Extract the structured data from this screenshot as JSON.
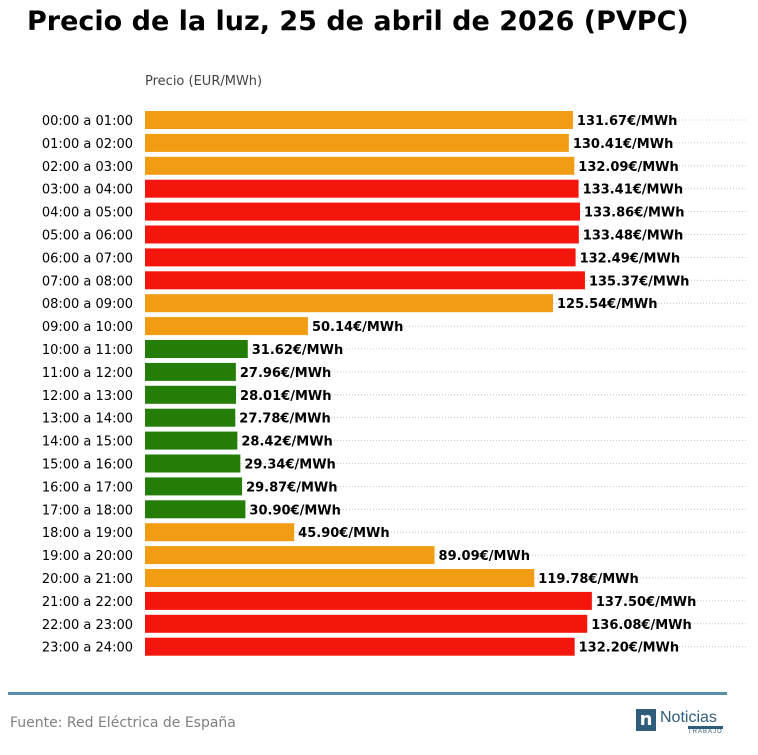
{
  "title": "Precio de la luz, 25 de abril de 2026 (PVPC)",
  "source": "Fuente: Red Eléctrica de España",
  "logo": {
    "mark": "n",
    "main": "Noticias",
    "sub": "TRABAJO"
  },
  "colors": {
    "high": "#f4150c",
    "mid": "#f29c13",
    "low": "#237d07",
    "rule": "#5b8fa8"
  },
  "chart_data": {
    "type": "bar",
    "orientation": "horizontal",
    "ylabel": "Precio (EUR/MWh)",
    "unit_suffix": "€/MWh",
    "xlim": [
      0,
      140
    ],
    "grid": "dotted horizontal",
    "categories": [
      "00:00 a 01:00",
      "01:00 a 02:00",
      "02:00 a 03:00",
      "03:00 a 04:00",
      "04:00 a 05:00",
      "05:00 a 06:00",
      "06:00 a 07:00",
      "07:00 a 08:00",
      "08:00 a 09:00",
      "09:00 a 10:00",
      "10:00 a 11:00",
      "11:00 a 12:00",
      "12:00 a 13:00",
      "13:00 a 14:00",
      "14:00 a 15:00",
      "15:00 a 16:00",
      "16:00 a 17:00",
      "17:00 a 18:00",
      "18:00 a 19:00",
      "19:00 a 20:00",
      "20:00 a 21:00",
      "21:00 a 22:00",
      "22:00 a 23:00",
      "23:00 a 24:00"
    ],
    "values": [
      131.67,
      130.41,
      132.09,
      133.41,
      133.86,
      133.48,
      132.49,
      135.37,
      125.54,
      50.14,
      31.62,
      27.96,
      28.01,
      27.78,
      28.42,
      29.34,
      29.87,
      30.9,
      45.9,
      89.09,
      119.78,
      137.5,
      136.08,
      132.2
    ],
    "labels": [
      "131.67€/MWh",
      "130.41€/MWh",
      "132.09€/MWh",
      "133.41€/MWh",
      "133.86€/MWh",
      "133.48€/MWh",
      "132.49€/MWh",
      "135.37€/MWh",
      "125.54€/MWh",
      "50.14€/MWh",
      "31.62€/MWh",
      "27.96€/MWh",
      "28.01€/MWh",
      "27.78€/MWh",
      "28.42€/MWh",
      "29.34€/MWh",
      "29.87€/MWh",
      "30.90€/MWh",
      "45.90€/MWh",
      "89.09€/MWh",
      "119.78€/MWh",
      "137.50€/MWh",
      "136.08€/MWh",
      "132.20€/MWh"
    ],
    "levels": [
      "mid",
      "mid",
      "mid",
      "high",
      "high",
      "high",
      "high",
      "high",
      "mid",
      "mid",
      "low",
      "low",
      "low",
      "low",
      "low",
      "low",
      "low",
      "low",
      "mid",
      "mid",
      "mid",
      "high",
      "high",
      "high"
    ]
  }
}
